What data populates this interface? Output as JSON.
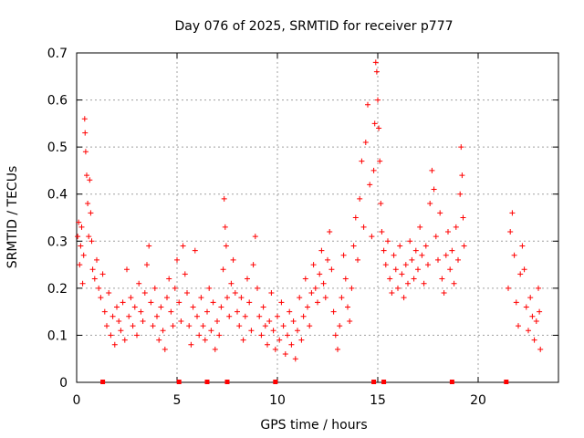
{
  "chart_data": {
    "type": "scatter",
    "title": "Day 076 of 2025, SRMTID for receiver p777",
    "xlabel": "GPS time / hours",
    "ylabel": "SRMTID / TECUs",
    "xlim": [
      0,
      24
    ],
    "ylim": [
      0,
      0.7
    ],
    "xticks": [
      0,
      5,
      10,
      15,
      20
    ],
    "xtick_labels": [
      "0",
      "5",
      "10",
      "15",
      "20"
    ],
    "yticks": [
      0,
      0.1,
      0.2,
      0.3,
      0.4,
      0.5,
      0.6,
      0.7
    ],
    "ytick_labels": [
      "0",
      "0.1",
      "0.2",
      "0.3",
      "0.4",
      "0.5",
      "0.6",
      "0.7"
    ],
    "grid": true,
    "marker": "plus",
    "color": "#ff0000",
    "zero_markers_x": [
      1.3,
      5.1,
      6.5,
      7.5,
      9.9,
      14.8,
      15.3,
      18.7,
      21.4
    ],
    "series": [
      {
        "name": "SRMTID",
        "points": [
          [
            0.05,
            0.31
          ],
          [
            0.1,
            0.34
          ],
          [
            0.15,
            0.25
          ],
          [
            0.2,
            0.29
          ],
          [
            0.25,
            0.33
          ],
          [
            0.3,
            0.21
          ],
          [
            0.35,
            0.27
          ],
          [
            0.4,
            0.56
          ],
          [
            0.42,
            0.53
          ],
          [
            0.45,
            0.49
          ],
          [
            0.5,
            0.44
          ],
          [
            0.55,
            0.38
          ],
          [
            0.6,
            0.31
          ],
          [
            0.65,
            0.43
          ],
          [
            0.7,
            0.36
          ],
          [
            0.75,
            0.3
          ],
          [
            0.8,
            0.24
          ],
          [
            0.9,
            0.22
          ],
          [
            1.0,
            0.26
          ],
          [
            1.1,
            0.2
          ],
          [
            1.2,
            0.18
          ],
          [
            1.3,
            0.23
          ],
          [
            1.4,
            0.15
          ],
          [
            1.5,
            0.12
          ],
          [
            1.6,
            0.19
          ],
          [
            1.7,
            0.1
          ],
          [
            1.8,
            0.14
          ],
          [
            1.9,
            0.08
          ],
          [
            2.0,
            0.16
          ],
          [
            2.1,
            0.13
          ],
          [
            2.2,
            0.11
          ],
          [
            2.3,
            0.17
          ],
          [
            2.4,
            0.09
          ],
          [
            2.5,
            0.24
          ],
          [
            2.6,
            0.14
          ],
          [
            2.7,
            0.18
          ],
          [
            2.8,
            0.12
          ],
          [
            2.9,
            0.16
          ],
          [
            3.0,
            0.1
          ],
          [
            3.1,
            0.21
          ],
          [
            3.2,
            0.15
          ],
          [
            3.3,
            0.13
          ],
          [
            3.4,
            0.19
          ],
          [
            3.5,
            0.25
          ],
          [
            3.6,
            0.29
          ],
          [
            3.7,
            0.17
          ],
          [
            3.8,
            0.12
          ],
          [
            3.9,
            0.2
          ],
          [
            4.0,
            0.14
          ],
          [
            4.1,
            0.09
          ],
          [
            4.2,
            0.16
          ],
          [
            4.3,
            0.11
          ],
          [
            4.4,
            0.07
          ],
          [
            4.5,
            0.18
          ],
          [
            4.6,
            0.22
          ],
          [
            4.7,
            0.15
          ],
          [
            4.8,
            0.12
          ],
          [
            4.9,
            0.2
          ],
          [
            5.0,
            0.26
          ],
          [
            5.1,
            0.17
          ],
          [
            5.2,
            0.13
          ],
          [
            5.3,
            0.29
          ],
          [
            5.4,
            0.23
          ],
          [
            5.5,
            0.19
          ],
          [
            5.6,
            0.12
          ],
          [
            5.7,
            0.08
          ],
          [
            5.8,
            0.16
          ],
          [
            5.9,
            0.28
          ],
          [
            6.0,
            0.14
          ],
          [
            6.1,
            0.1
          ],
          [
            6.2,
            0.18
          ],
          [
            6.3,
            0.12
          ],
          [
            6.4,
            0.09
          ],
          [
            6.5,
            0.15
          ],
          [
            6.6,
            0.2
          ],
          [
            6.7,
            0.11
          ],
          [
            6.8,
            0.17
          ],
          [
            6.9,
            0.07
          ],
          [
            7.0,
            0.13
          ],
          [
            7.1,
            0.1
          ],
          [
            7.2,
            0.16
          ],
          [
            7.3,
            0.24
          ],
          [
            7.35,
            0.39
          ],
          [
            7.4,
            0.33
          ],
          [
            7.45,
            0.29
          ],
          [
            7.5,
            0.18
          ],
          [
            7.6,
            0.14
          ],
          [
            7.7,
            0.21
          ],
          [
            7.8,
            0.26
          ],
          [
            7.9,
            0.19
          ],
          [
            8.0,
            0.15
          ],
          [
            8.1,
            0.12
          ],
          [
            8.2,
            0.18
          ],
          [
            8.3,
            0.09
          ],
          [
            8.4,
            0.14
          ],
          [
            8.5,
            0.22
          ],
          [
            8.6,
            0.17
          ],
          [
            8.7,
            0.11
          ],
          [
            8.8,
            0.25
          ],
          [
            8.9,
            0.31
          ],
          [
            9.0,
            0.2
          ],
          [
            9.1,
            0.14
          ],
          [
            9.2,
            0.1
          ],
          [
            9.3,
            0.16
          ],
          [
            9.4,
            0.12
          ],
          [
            9.5,
            0.08
          ],
          [
            9.6,
            0.13
          ],
          [
            9.7,
            0.19
          ],
          [
            9.8,
            0.11
          ],
          [
            9.9,
            0.07
          ],
          [
            10.0,
            0.14
          ],
          [
            10.1,
            0.09
          ],
          [
            10.2,
            0.17
          ],
          [
            10.3,
            0.12
          ],
          [
            10.4,
            0.06
          ],
          [
            10.5,
            0.1
          ],
          [
            10.6,
            0.15
          ],
          [
            10.7,
            0.08
          ],
          [
            10.8,
            0.13
          ],
          [
            10.9,
            0.05
          ],
          [
            11.0,
            0.11
          ],
          [
            11.1,
            0.18
          ],
          [
            11.2,
            0.09
          ],
          [
            11.3,
            0.14
          ],
          [
            11.4,
            0.22
          ],
          [
            11.5,
            0.16
          ],
          [
            11.6,
            0.12
          ],
          [
            11.7,
            0.19
          ],
          [
            11.8,
            0.25
          ],
          [
            11.9,
            0.2
          ],
          [
            12.0,
            0.17
          ],
          [
            12.1,
            0.23
          ],
          [
            12.2,
            0.28
          ],
          [
            12.3,
            0.21
          ],
          [
            12.4,
            0.18
          ],
          [
            12.5,
            0.26
          ],
          [
            12.6,
            0.32
          ],
          [
            12.7,
            0.24
          ],
          [
            12.8,
            0.15
          ],
          [
            12.9,
            0.1
          ],
          [
            13.0,
            0.07
          ],
          [
            13.1,
            0.12
          ],
          [
            13.2,
            0.18
          ],
          [
            13.3,
            0.27
          ],
          [
            13.4,
            0.22
          ],
          [
            13.5,
            0.16
          ],
          [
            13.6,
            0.13
          ],
          [
            13.7,
            0.2
          ],
          [
            13.8,
            0.29
          ],
          [
            13.9,
            0.35
          ],
          [
            14.0,
            0.26
          ],
          [
            14.1,
            0.39
          ],
          [
            14.2,
            0.47
          ],
          [
            14.3,
            0.33
          ],
          [
            14.4,
            0.51
          ],
          [
            14.5,
            0.59
          ],
          [
            14.6,
            0.42
          ],
          [
            14.7,
            0.31
          ],
          [
            14.8,
            0.45
          ],
          [
            14.85,
            0.55
          ],
          [
            14.9,
            0.68
          ],
          [
            14.95,
            0.66
          ],
          [
            15.0,
            0.6
          ],
          [
            15.05,
            0.54
          ],
          [
            15.1,
            0.47
          ],
          [
            15.15,
            0.38
          ],
          [
            15.2,
            0.32
          ],
          [
            15.3,
            0.28
          ],
          [
            15.4,
            0.25
          ],
          [
            15.5,
            0.3
          ],
          [
            15.6,
            0.22
          ],
          [
            15.7,
            0.19
          ],
          [
            15.8,
            0.27
          ],
          [
            15.9,
            0.24
          ],
          [
            16.0,
            0.2
          ],
          [
            16.1,
            0.29
          ],
          [
            16.2,
            0.23
          ],
          [
            16.3,
            0.18
          ],
          [
            16.4,
            0.25
          ],
          [
            16.5,
            0.21
          ],
          [
            16.6,
            0.3
          ],
          [
            16.7,
            0.26
          ],
          [
            16.8,
            0.22
          ],
          [
            16.9,
            0.28
          ],
          [
            17.0,
            0.24
          ],
          [
            17.1,
            0.33
          ],
          [
            17.2,
            0.27
          ],
          [
            17.3,
            0.21
          ],
          [
            17.4,
            0.29
          ],
          [
            17.5,
            0.25
          ],
          [
            17.6,
            0.38
          ],
          [
            17.7,
            0.45
          ],
          [
            17.8,
            0.41
          ],
          [
            17.9,
            0.31
          ],
          [
            18.0,
            0.26
          ],
          [
            18.1,
            0.36
          ],
          [
            18.2,
            0.22
          ],
          [
            18.3,
            0.19
          ],
          [
            18.4,
            0.27
          ],
          [
            18.5,
            0.32
          ],
          [
            18.6,
            0.24
          ],
          [
            18.7,
            0.28
          ],
          [
            18.8,
            0.21
          ],
          [
            18.9,
            0.33
          ],
          [
            19.0,
            0.26
          ],
          [
            19.1,
            0.4
          ],
          [
            19.15,
            0.5
          ],
          [
            19.2,
            0.44
          ],
          [
            19.25,
            0.35
          ],
          [
            19.3,
            0.29
          ],
          [
            21.5,
            0.2
          ],
          [
            21.6,
            0.32
          ],
          [
            21.7,
            0.36
          ],
          [
            21.8,
            0.27
          ],
          [
            21.9,
            0.17
          ],
          [
            22.0,
            0.12
          ],
          [
            22.1,
            0.23
          ],
          [
            22.2,
            0.29
          ],
          [
            22.3,
            0.24
          ],
          [
            22.4,
            0.16
          ],
          [
            22.5,
            0.11
          ],
          [
            22.6,
            0.18
          ],
          [
            22.7,
            0.14
          ],
          [
            22.8,
            0.09
          ],
          [
            22.9,
            0.13
          ],
          [
            23.0,
            0.2
          ],
          [
            23.05,
            0.15
          ],
          [
            23.1,
            0.07
          ]
        ]
      }
    ]
  }
}
